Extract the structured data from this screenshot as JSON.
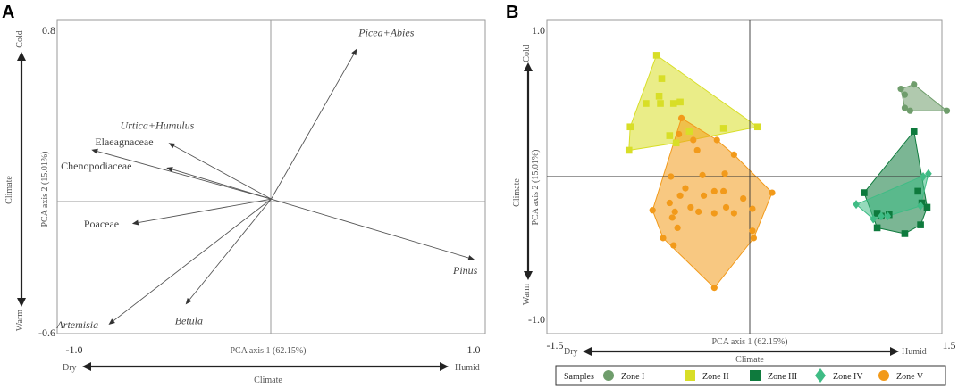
{
  "panel_a": {
    "letter": "A"
  },
  "panel_b": {
    "letter": "B"
  },
  "colors": {
    "zone1": "#6f9d6c",
    "zone2": "#d8de27",
    "zone3": "#0e7a3d",
    "zone4": "#3fbc85",
    "zone5": "#f29a1a"
  },
  "chart_data": [
    {
      "type": "biplot",
      "panel": "A",
      "xlabel": "PCA axis 1 (62.15%)",
      "ylabel": "PCA axis 2 (15.01%)",
      "xlim": [
        -1.0,
        1.0
      ],
      "ylim": [
        -0.6,
        0.8
      ],
      "x_ticks": [
        "-1.0",
        "1.0"
      ],
      "y_ticks": [
        "0.8",
        "-0.6"
      ],
      "climate_x": {
        "label": "Climate",
        "left": "Dry",
        "right": "Humid"
      },
      "climate_y": {
        "label": "Climate",
        "top": "Cold",
        "bottom": "Warm"
      },
      "vectors": [
        {
          "name": "Picea+Abies",
          "x": 0.4,
          "y": 0.67,
          "italic": true
        },
        {
          "name": "Urtica+Humulus",
          "x": -0.48,
          "y": 0.25,
          "italic": true
        },
        {
          "name": "Elaeagnaceae",
          "x": -0.84,
          "y": 0.22,
          "italic": false
        },
        {
          "name": "Chenopodiaceae",
          "x": -0.49,
          "y": 0.14,
          "italic": false
        },
        {
          "name": "Poaceae",
          "x": -0.65,
          "y": -0.11,
          "italic": false
        },
        {
          "name": "Pinus",
          "x": 0.95,
          "y": -0.27,
          "italic": true
        },
        {
          "name": "Betula",
          "x": -0.4,
          "y": -0.47,
          "italic": true
        },
        {
          "name": "Artemisia",
          "x": -0.76,
          "y": -0.56,
          "italic": true
        }
      ]
    },
    {
      "type": "scatter",
      "panel": "B",
      "xlabel": "PCA axis 1 (62.15%)",
      "ylabel": "PCA axis 2 (15.01%)",
      "xlim": [
        -1.5,
        1.5
      ],
      "ylim": [
        -1.0,
        1.0
      ],
      "x_ticks": [
        "-1.5",
        "1.5"
      ],
      "y_ticks": [
        "1.0",
        "-1.0"
      ],
      "climate_x": {
        "label": "Climate",
        "left": "Dry",
        "right": "Humid"
      },
      "climate_y": {
        "label": "Climate",
        "top": "Cold",
        "bottom": "Warm"
      },
      "legend": {
        "title": "Samples",
        "position": "bottom"
      },
      "series": [
        {
          "name": "Zone I",
          "marker": "circle",
          "color_key": "zone1",
          "points": [
            [
              1.15,
              0.6
            ],
            [
              1.25,
              0.63
            ],
            [
              1.18,
              0.56
            ],
            [
              1.5,
              0.45
            ],
            [
              1.18,
              0.47
            ],
            [
              1.22,
              0.45
            ]
          ]
        },
        {
          "name": "Zone II",
          "marker": "square",
          "color_key": "zone2",
          "points": [
            [
              -0.71,
              0.83
            ],
            [
              -0.67,
              0.67
            ],
            [
              -0.69,
              0.55
            ],
            [
              -0.79,
              0.5
            ],
            [
              -0.68,
              0.5
            ],
            [
              -0.58,
              0.5
            ],
            [
              -0.53,
              0.51
            ],
            [
              -0.91,
              0.34
            ],
            [
              -0.61,
              0.28
            ],
            [
              -0.46,
              0.31
            ],
            [
              -0.56,
              0.23
            ],
            [
              -0.92,
              0.18
            ],
            [
              -0.2,
              0.33
            ],
            [
              0.06,
              0.34
            ]
          ]
        },
        {
          "name": "Zone III",
          "marker": "square",
          "color_key": "zone3",
          "points": [
            [
              1.25,
              0.31
            ],
            [
              0.87,
              -0.11
            ],
            [
              0.97,
              -0.25
            ],
            [
              1.28,
              -0.1
            ],
            [
              1.31,
              -0.18
            ],
            [
              1.06,
              -0.26
            ],
            [
              1.0,
              -0.27
            ],
            [
              1.35,
              -0.21
            ],
            [
              1.18,
              -0.39
            ],
            [
              0.97,
              -0.35
            ],
            [
              1.3,
              -0.33
            ]
          ]
        },
        {
          "name": "Zone IV",
          "marker": "diamond",
          "color_key": "zone4",
          "points": [
            [
              1.32,
              0.0
            ],
            [
              1.36,
              0.02
            ],
            [
              0.81,
              -0.19
            ],
            [
              0.94,
              -0.29
            ],
            [
              1.0,
              -0.27
            ],
            [
              1.3,
              -0.2
            ],
            [
              1.05,
              -0.27
            ]
          ]
        },
        {
          "name": "Zone V",
          "marker": "circle",
          "color_key": "zone5",
          "points": [
            [
              -0.52,
              0.4
            ],
            [
              -0.54,
              0.29
            ],
            [
              -0.43,
              0.25
            ],
            [
              -0.25,
              0.25
            ],
            [
              -0.4,
              0.18
            ],
            [
              -0.12,
              0.15
            ],
            [
              -0.19,
              0.02
            ],
            [
              -0.36,
              0.01
            ],
            [
              -0.6,
              0.0
            ],
            [
              -0.49,
              -0.08
            ],
            [
              -0.27,
              -0.1
            ],
            [
              -0.2,
              -0.1
            ],
            [
              -0.35,
              -0.13
            ],
            [
              -0.61,
              -0.18
            ],
            [
              -0.53,
              -0.13
            ],
            [
              -0.45,
              -0.21
            ],
            [
              -0.74,
              -0.23
            ],
            [
              -0.57,
              -0.24
            ],
            [
              -0.59,
              -0.28
            ],
            [
              -0.39,
              -0.24
            ],
            [
              -0.27,
              -0.25
            ],
            [
              -0.12,
              -0.25
            ],
            [
              -0.55,
              -0.35
            ],
            [
              -0.05,
              -0.15
            ],
            [
              -0.18,
              -0.21
            ],
            [
              0.17,
              -0.11
            ],
            [
              0.02,
              -0.22
            ],
            [
              0.02,
              -0.37
            ],
            [
              -0.66,
              -0.42
            ],
            [
              -0.58,
              -0.47
            ],
            [
              0.03,
              -0.42
            ],
            [
              -0.27,
              -0.76
            ]
          ]
        }
      ]
    }
  ]
}
